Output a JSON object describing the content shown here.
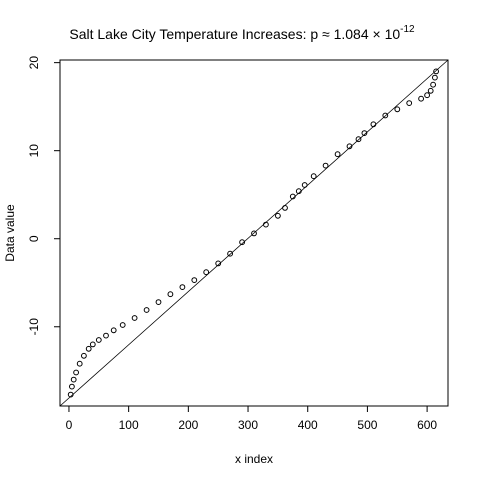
{
  "chart_data": {
    "type": "scatter",
    "title": "Salt Lake City Temperature Increases: p ≈ 1.084 × 10",
    "title_exponent": "-12",
    "xlabel": "x index",
    "ylabel": "Data value",
    "xlim": [
      -15,
      635
    ],
    "ylim": [
      -19,
      20.3
    ],
    "x_ticks": [
      0,
      100,
      200,
      300,
      400,
      500,
      600
    ],
    "y_ticks": [
      -10,
      0,
      10,
      20
    ],
    "reference_line": {
      "x": [
        -15,
        635
      ],
      "y": [
        -19,
        20.3
      ]
    },
    "marker": "open-circle",
    "grid": false,
    "legend": "none",
    "series": [
      {
        "x": [
          3,
          5,
          8,
          12,
          18,
          25,
          33,
          40,
          50,
          62,
          75,
          90,
          110,
          130,
          150,
          170,
          190,
          210,
          230,
          250,
          270,
          290,
          310,
          330,
          350,
          362,
          375,
          385,
          395,
          410,
          430,
          450,
          470,
          485,
          495,
          510,
          530,
          550,
          570,
          590,
          600,
          606,
          610,
          613,
          615
        ],
        "y": [
          -17.7,
          -16.8,
          -16.0,
          -15.2,
          -14.2,
          -13.3,
          -12.5,
          -12.0,
          -11.5,
          -11.0,
          -10.4,
          -9.8,
          -9.0,
          -8.1,
          -7.2,
          -6.3,
          -5.5,
          -4.7,
          -3.8,
          -2.8,
          -1.7,
          -0.4,
          0.6,
          1.6,
          2.6,
          3.5,
          4.8,
          5.4,
          6.1,
          7.1,
          8.3,
          9.6,
          10.5,
          11.3,
          12.0,
          13.0,
          14.0,
          14.7,
          15.4,
          15.9,
          16.3,
          16.8,
          17.5,
          18.3,
          19.0
        ]
      }
    ]
  }
}
